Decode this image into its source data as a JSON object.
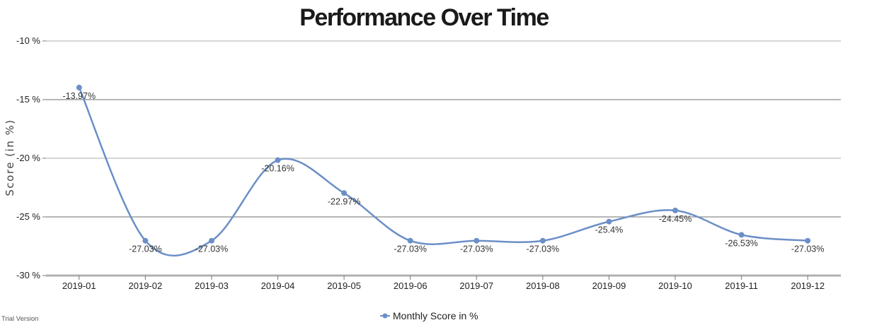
{
  "chart_data": {
    "type": "line",
    "title": "Performance Over Time",
    "xlabel": "",
    "ylabel": "Score (in %)",
    "categories": [
      "2019-01",
      "2019-02",
      "2019-03",
      "2019-04",
      "2019-05",
      "2019-06",
      "2019-07",
      "2019-08",
      "2019-09",
      "2019-10",
      "2019-11",
      "2019-12"
    ],
    "series": [
      {
        "name": "Monthly Score in %",
        "values": [
          -13.97,
          -27.03,
          -27.03,
          -20.16,
          -22.97,
          -27.03,
          -27.03,
          -27.03,
          -25.4,
          -24.45,
          -26.53,
          -27.03
        ],
        "labels": [
          "-13.97%",
          "-27.03%",
          "-27.03%",
          "-20.16%",
          "-22.97%",
          "-27.03%",
          "-27.03%",
          "-27.03%",
          "-25.4%",
          "-24.45%",
          "-26.53%",
          "-27.03%"
        ],
        "color": "#6b8fc7"
      }
    ],
    "ylim": [
      -30,
      -10
    ],
    "yticks": [
      "-10 %",
      "-15 %",
      "-20 %",
      "-25 %",
      "-30 %"
    ],
    "ytick_values": [
      -10,
      -15,
      -20,
      -25,
      -30
    ],
    "grid": true,
    "legend": "bottom-center",
    "smooth": true
  },
  "footer": {
    "watermark": "Trial Version"
  }
}
